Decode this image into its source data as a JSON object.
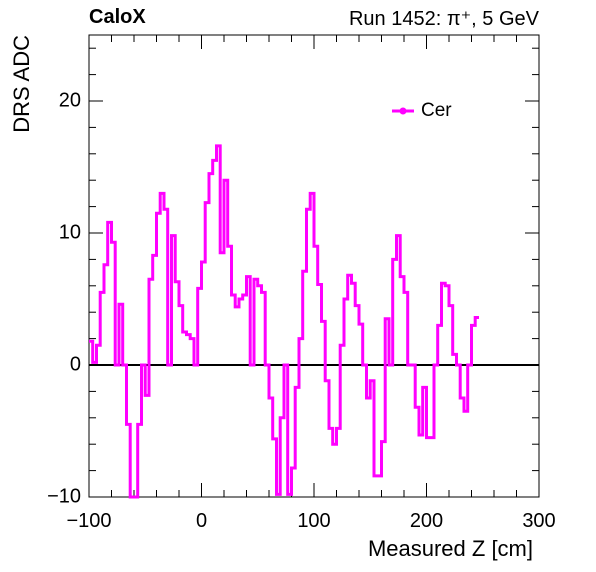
{
  "header": {
    "experiment": "CaloX",
    "run_info": "Run 1452:   π⁺, 5 GeV"
  },
  "chart_data": {
    "type": "line",
    "style": "step-histogram",
    "xlabel": "Measured Z [cm]",
    "ylabel": "DRS ADC",
    "xlim": [
      -100,
      300
    ],
    "ylim": [
      -10,
      25
    ],
    "xticks": [
      -100,
      0,
      100,
      200,
      300
    ],
    "yticks": [
      -10,
      0,
      10,
      20
    ],
    "xtick_labels": [
      "−100",
      "0",
      "100",
      "200",
      "300"
    ],
    "ytick_labels": [
      "−10",
      "0",
      "10",
      "20"
    ],
    "grid": false,
    "zero_line": true,
    "legend_position": "top-right",
    "series": [
      {
        "name": "Cer",
        "color": "#ff00ff",
        "bin_width": 3.333,
        "x_start": -100,
        "values": [
          1.8,
          0.2,
          1.5,
          5.5,
          7.6,
          10.8,
          9.3,
          0,
          4.6,
          0,
          -4.5,
          -10,
          -10,
          -4.5,
          0,
          -2.3,
          6.5,
          8.3,
          11.5,
          13.0,
          11.8,
          0,
          9.8,
          6.3,
          4.5,
          2.5,
          2.3,
          2.0,
          0,
          5.8,
          7.8,
          12.3,
          14.5,
          15.5,
          16.6,
          8.5,
          14.0,
          9.0,
          5.3,
          4.4,
          5.0,
          5.3,
          6.7,
          0,
          6.5,
          6.0,
          5.5,
          0,
          -2.5,
          -5.6,
          -9.8,
          -4.0,
          0,
          -9.8,
          -7.8,
          -1.7,
          2.0,
          7.1,
          11.8,
          13.0,
          9.0,
          6.1,
          3.3,
          -1.2,
          -4.8,
          -6.0,
          -4.8,
          1.5,
          5.0,
          6.8,
          6.2,
          4.5,
          3.1,
          0,
          -2.5,
          -1.2,
          -8.4,
          -8.4,
          -5.8,
          3.5,
          0,
          8.0,
          9.8,
          6.7,
          5.5,
          0,
          0,
          -3.2,
          -5.3,
          -1.7,
          -5.5,
          -5.5,
          0,
          3.0,
          6.2,
          6.0,
          4.5,
          0.8,
          0,
          -2.5,
          -3.5,
          0,
          3.0,
          3.6
        ]
      }
    ]
  }
}
